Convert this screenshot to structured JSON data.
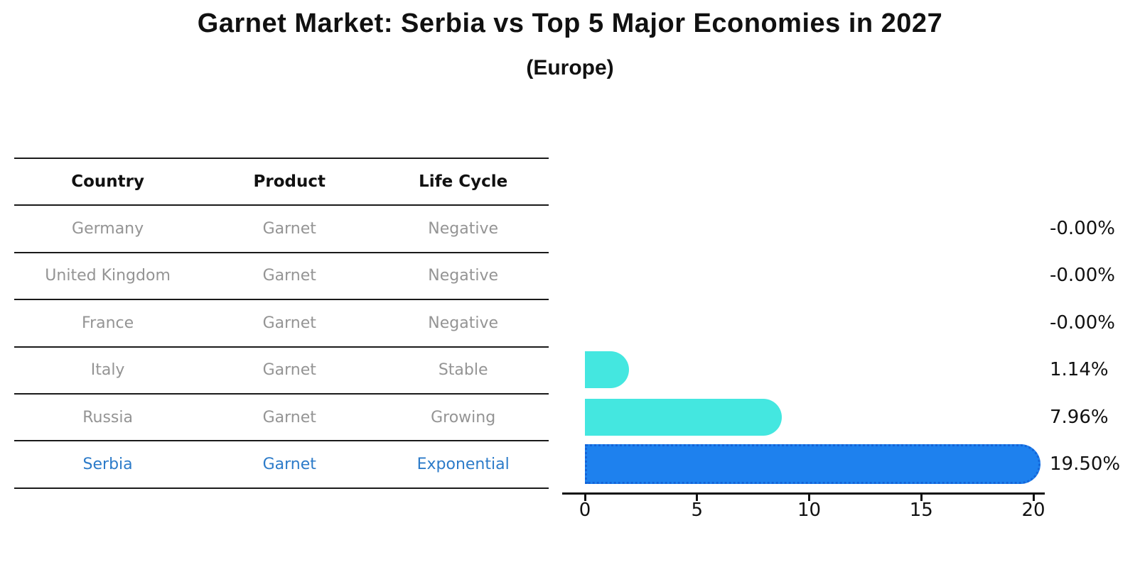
{
  "chart_data": {
    "type": "bar",
    "orientation": "horizontal",
    "title": "Garnet Market: Serbia vs Top 5 Major Economies in 2027",
    "subtitle": "(Europe)",
    "categories": [
      "Germany",
      "United Kingdom",
      "France",
      "Italy",
      "Russia",
      "Serbia"
    ],
    "values": [
      -0.0,
      -0.0,
      -0.0,
      1.14,
      7.96,
      19.5
    ],
    "value_labels": [
      "-0.00%",
      "-0.00%",
      "-0.00%",
      "1.14%",
      "7.96%",
      "19.50%"
    ],
    "xlim": [
      0,
      20
    ],
    "x_ticks": [
      0,
      5,
      10,
      15,
      20
    ],
    "x_tick_labels": [
      "0",
      "5",
      "10",
      "15",
      "20"
    ],
    "highlight_category": "Serbia",
    "highlight_index": 5,
    "grid": false,
    "legend": false
  },
  "table": {
    "headers": [
      "Country",
      "Product",
      "Life Cycle"
    ],
    "rows": [
      {
        "country": "Germany",
        "product": "Garnet",
        "life_cycle": "Negative"
      },
      {
        "country": "United Kingdom",
        "product": "Garnet",
        "life_cycle": "Negative"
      },
      {
        "country": "France",
        "product": "Garnet",
        "life_cycle": "Negative"
      },
      {
        "country": "Italy",
        "product": "Garnet",
        "life_cycle": "Stable"
      },
      {
        "country": "Russia",
        "product": "Garnet",
        "life_cycle": "Growing"
      },
      {
        "country": "Serbia",
        "product": "Garnet",
        "life_cycle": "Exponential"
      }
    ]
  },
  "colors": {
    "bar_default": "#44E7E0",
    "bar_highlight": "#1E81EE",
    "bar_highlight_border": "#1464D8",
    "row_text": "#949494",
    "highlight_text": "#2C7BC9",
    "text": "#111111"
  }
}
